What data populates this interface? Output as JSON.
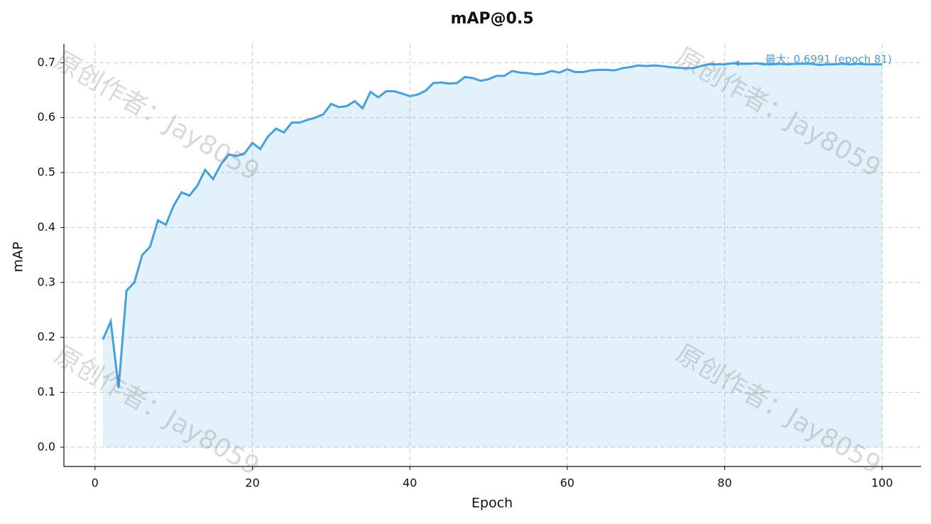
{
  "chart_data": {
    "type": "line",
    "title": "mAP@0.5",
    "xlabel": "Epoch",
    "ylabel": "mAP",
    "x": [
      1,
      2,
      3,
      4,
      5,
      6,
      7,
      8,
      9,
      10,
      11,
      12,
      13,
      14,
      15,
      16,
      17,
      18,
      19,
      20,
      21,
      22,
      23,
      24,
      25,
      26,
      27,
      28,
      29,
      30,
      31,
      32,
      33,
      34,
      35,
      36,
      37,
      38,
      39,
      40,
      41,
      42,
      43,
      44,
      45,
      46,
      47,
      48,
      49,
      50,
      51,
      52,
      53,
      54,
      55,
      56,
      57,
      58,
      59,
      60,
      61,
      62,
      63,
      64,
      65,
      66,
      67,
      68,
      69,
      70,
      71,
      72,
      73,
      74,
      75,
      76,
      77,
      78,
      79,
      80,
      81,
      82,
      83,
      84,
      85,
      86,
      87,
      88,
      89,
      90,
      91,
      92,
      93,
      94,
      95,
      96,
      97,
      98,
      99,
      100
    ],
    "values": [
      0.196,
      0.229,
      0.108,
      0.285,
      0.3,
      0.35,
      0.365,
      0.413,
      0.405,
      0.44,
      0.464,
      0.458,
      0.476,
      0.505,
      0.488,
      0.515,
      0.533,
      0.53,
      0.535,
      0.554,
      0.543,
      0.566,
      0.58,
      0.573,
      0.591,
      0.591,
      0.596,
      0.6,
      0.606,
      0.625,
      0.619,
      0.621,
      0.63,
      0.617,
      0.647,
      0.637,
      0.648,
      0.648,
      0.644,
      0.639,
      0.642,
      0.649,
      0.663,
      0.664,
      0.662,
      0.663,
      0.674,
      0.672,
      0.667,
      0.67,
      0.676,
      0.676,
      0.685,
      0.682,
      0.681,
      0.679,
      0.68,
      0.685,
      0.682,
      0.688,
      0.683,
      0.683,
      0.686,
      0.687,
      0.687,
      0.686,
      0.69,
      0.692,
      0.695,
      0.694,
      0.695,
      0.694,
      0.692,
      0.691,
      0.69,
      0.69,
      0.694,
      0.697,
      0.697,
      0.697,
      0.6991,
      0.698,
      0.698,
      0.699,
      0.697,
      0.697,
      0.698,
      0.697,
      0.698,
      0.698,
      0.698,
      0.696,
      0.697,
      0.697,
      0.698,
      0.697,
      0.698,
      0.697,
      0.697,
      0.697
    ],
    "color": "#45a0dc",
    "xlim": [
      -3.95,
      104.95
    ],
    "xticks": [
      0,
      20,
      40,
      60,
      80,
      100
    ],
    "ylim": [
      -0.035,
      0.734
    ],
    "yticks": [
      {
        "value": 0,
        "label": "0.0"
      },
      0.1,
      0.2,
      0.3,
      0.4,
      0.5,
      0.6,
      0.7
    ],
    "grid": true,
    "annotation": {
      "text": "最大: 0.6991 (epoch 81)",
      "x": 81,
      "y": 0.6991
    },
    "watermark": "原创作者：Jay8059"
  }
}
